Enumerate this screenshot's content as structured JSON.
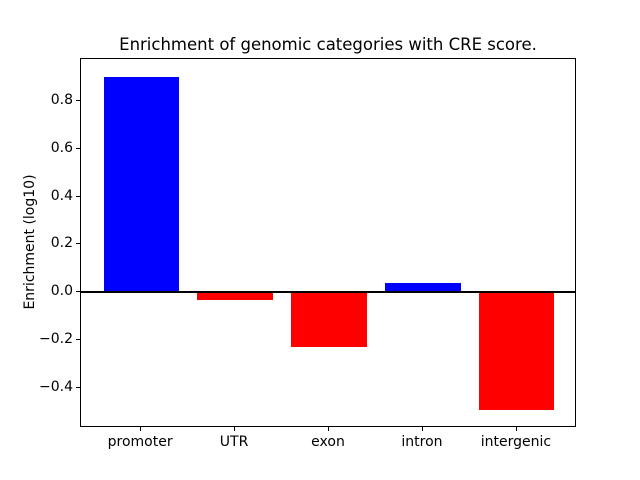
{
  "chart_data": {
    "type": "bar",
    "title": "Enrichment of genomic categories with CRE score.",
    "xlabel": "",
    "ylabel": "Enrichment (log10)",
    "categories": [
      "promoter",
      "UTR",
      "exon",
      "intron",
      "intergenic"
    ],
    "values": [
      0.9,
      -0.03,
      -0.23,
      0.04,
      -0.49
    ],
    "bar_colors": [
      "#0000ff",
      "#ff0000",
      "#ff0000",
      "#0000ff",
      "#ff0000"
    ],
    "positive_color": "#0000ff",
    "negative_color": "#ff0000",
    "yticks": [
      {
        "label": "0.8",
        "value": 0.8
      },
      {
        "label": "0.6",
        "value": 0.6
      },
      {
        "label": "0.4",
        "value": 0.4
      },
      {
        "label": "0.2",
        "value": 0.2
      },
      {
        "label": "0.0",
        "value": 0.0
      },
      {
        "label": "−0.2",
        "value": -0.2
      },
      {
        "label": "−0.4",
        "value": -0.4
      }
    ],
    "ylim": [
      -0.566,
      0.974
    ],
    "xlim": [
      -0.64,
      4.64
    ],
    "bar_width": 0.8,
    "grid": false,
    "zero_line": true,
    "legend": null,
    "background_color": "#ffffff",
    "axis_color": "#000000"
  }
}
